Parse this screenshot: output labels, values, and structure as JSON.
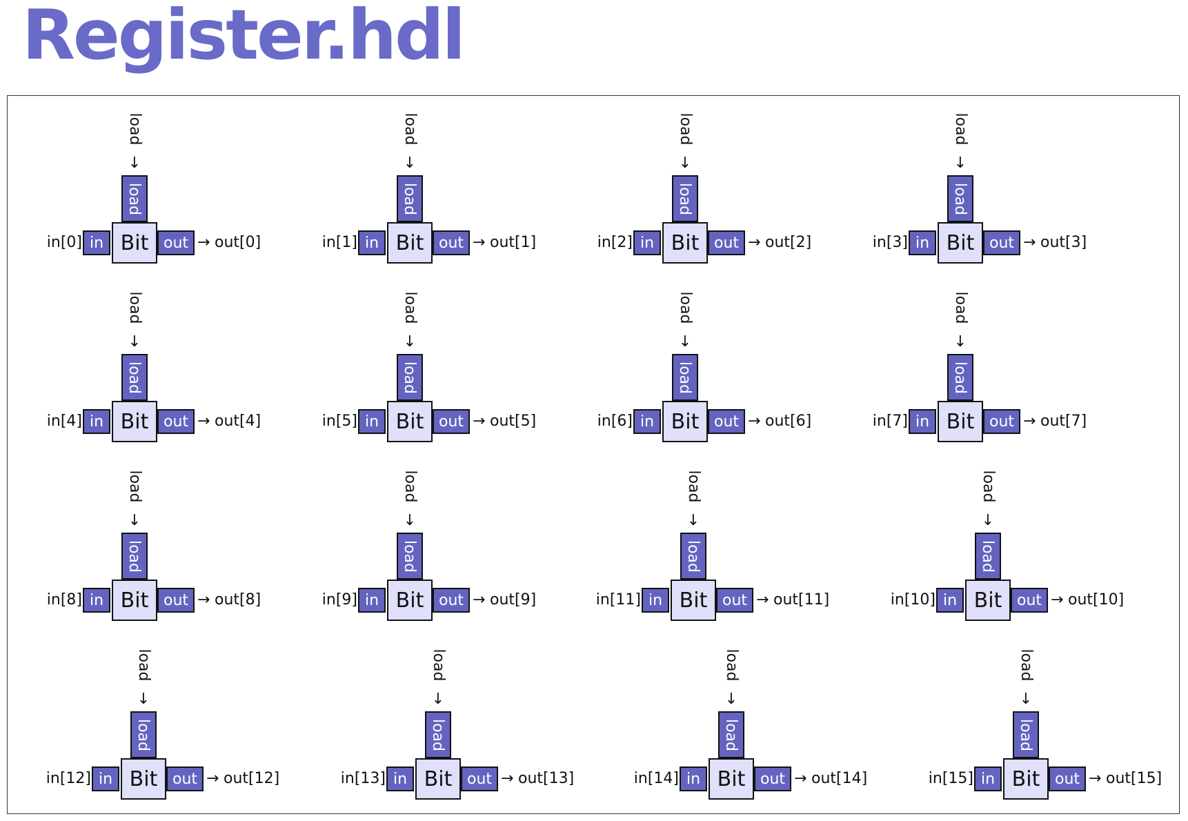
{
  "title": "Register.hdl",
  "colors": {
    "accent": "#6a6ac8",
    "stub_fill": "#6464c0",
    "bit_fill": "#e0e0fa",
    "outline": "#111111",
    "frame": "#333333"
  },
  "chip": {
    "label": "Bit",
    "in_pin": "in",
    "out_pin": "out",
    "load_pin": "load",
    "load_signal": "load",
    "arrow_right": "→",
    "arrow_down": "↓"
  },
  "rows": [
    [
      {
        "in": "in[0]",
        "out": "out[0]"
      },
      {
        "in": "in[1]",
        "out": "out[1]"
      },
      {
        "in": "in[2]",
        "out": "out[2]"
      },
      {
        "in": "in[3]",
        "out": "out[3]"
      }
    ],
    [
      {
        "in": "in[4]",
        "out": "out[4]"
      },
      {
        "in": "in[5]",
        "out": "out[5]"
      },
      {
        "in": "in[6]",
        "out": "out[6]"
      },
      {
        "in": "in[7]",
        "out": "out[7]"
      }
    ],
    [
      {
        "in": "in[8]",
        "out": "out[8]"
      },
      {
        "in": "in[9]",
        "out": "out[9]"
      },
      {
        "in": "in[11]",
        "out": "out[11]"
      },
      {
        "in": "in[10]",
        "out": "out[10]"
      }
    ],
    [
      {
        "in": "in[12]",
        "out": "out[12]"
      },
      {
        "in": "in[13]",
        "out": "out[13]"
      },
      {
        "in": "in[14]",
        "out": "out[14]"
      },
      {
        "in": "in[15]",
        "out": "out[15]"
      }
    ]
  ]
}
